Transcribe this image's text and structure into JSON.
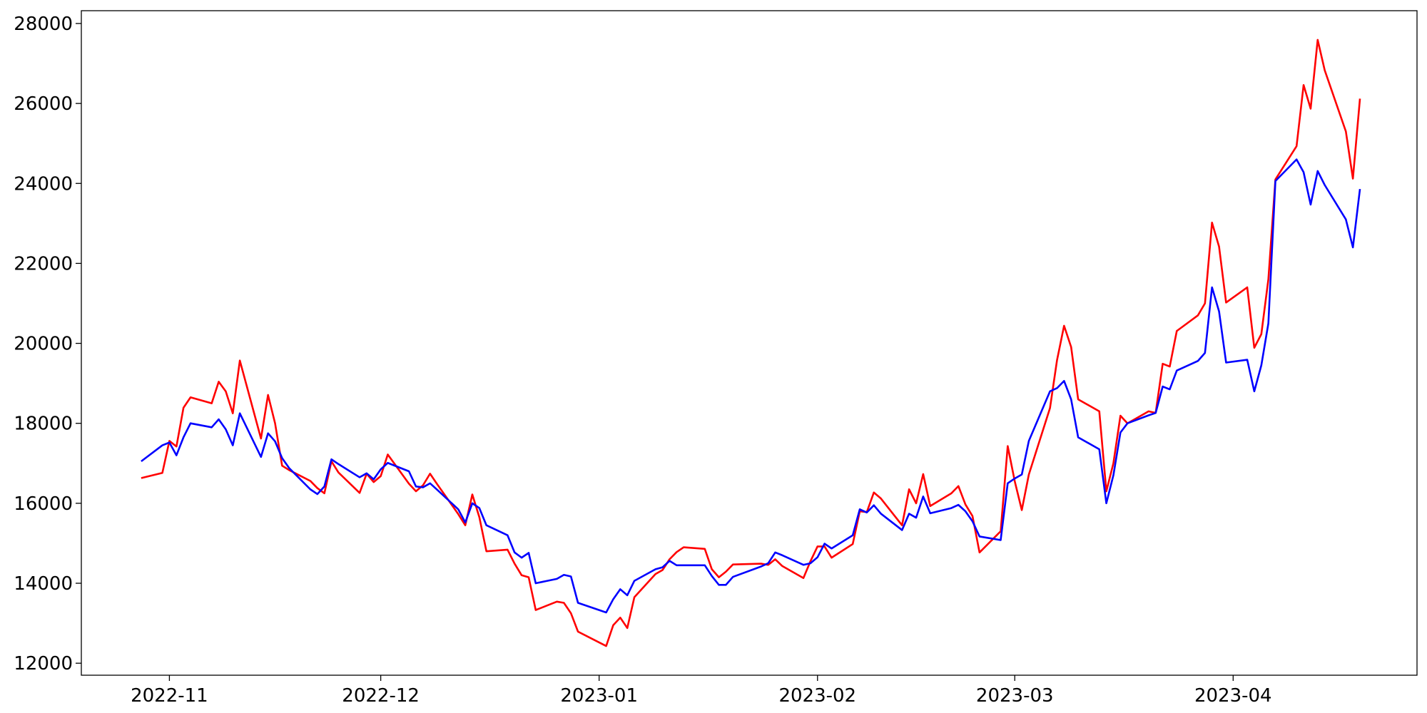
{
  "chart_data": {
    "type": "line",
    "x": [
      -4,
      -1,
      0,
      1,
      2,
      3,
      6,
      7,
      8,
      9,
      10,
      13,
      14,
      15,
      16,
      17,
      20,
      21,
      22,
      23,
      24,
      27,
      28,
      29,
      30,
      31,
      34,
      35,
      36,
      37,
      38,
      41,
      42,
      43,
      44,
      45,
      48,
      49,
      50,
      51,
      52,
      55,
      56,
      57,
      58,
      62,
      63,
      64,
      65,
      66,
      69,
      70,
      71,
      72,
      73,
      76,
      77,
      78,
      79,
      80,
      84,
      85,
      86,
      87,
      90,
      91,
      92,
      93,
      94,
      97,
      98,
      99,
      100,
      101,
      104,
      105,
      106,
      107,
      108,
      111,
      112,
      113,
      114,
      115,
      118,
      119,
      120,
      121,
      122,
      125,
      126,
      127,
      128,
      129,
      132,
      133,
      134,
      135,
      136,
      139,
      140,
      141,
      142,
      143,
      146,
      147,
      148,
      149,
      150,
      153,
      154,
      155,
      156,
      157,
      160,
      161,
      162,
      163,
      164,
      167,
      168,
      169
    ],
    "series": [
      {
        "color": "#ff0000",
        "values": [
          16630,
          16760,
          17560,
          17420,
          18390,
          18650,
          18500,
          19040,
          18800,
          18250,
          19570,
          17620,
          18710,
          18000,
          16940,
          16830,
          16560,
          16380,
          16250,
          17050,
          16770,
          16260,
          16740,
          16530,
          16680,
          17220,
          16490,
          16300,
          16450,
          16740,
          16480,
          15730,
          15450,
          16220,
          15650,
          14800,
          14840,
          14490,
          14200,
          14150,
          13330,
          13540,
          13510,
          13250,
          12790,
          12430,
          12950,
          13140,
          12880,
          13650,
          14230,
          14330,
          14600,
          14780,
          14900,
          14860,
          14350,
          14150,
          14290,
          14470,
          14490,
          14460,
          14600,
          14430,
          14130,
          14550,
          14920,
          14920,
          14640,
          14980,
          15800,
          15780,
          16270,
          16120,
          15450,
          16350,
          16000,
          16730,
          15930,
          16250,
          16430,
          15970,
          15680,
          14770,
          15300,
          17430,
          16550,
          15830,
          16720,
          18380,
          19580,
          20440,
          19910,
          18600,
          18300,
          16300,
          17000,
          18190,
          18000,
          18300,
          18260,
          19490,
          19420,
          20310,
          20700,
          21000,
          23020,
          22420,
          21020,
          21400,
          19890,
          20230,
          21600,
          24100,
          24930,
          26460,
          25870,
          27590,
          26830,
          25300,
          24120,
          26120
        ]
      },
      {
        "color": "#0000ff",
        "values": [
          17050,
          17450,
          17520,
          17200,
          17650,
          18000,
          17900,
          18100,
          17850,
          17450,
          18250,
          17160,
          17750,
          17550,
          17130,
          16880,
          16350,
          16230,
          16420,
          17100,
          16980,
          16650,
          16750,
          16600,
          16850,
          17010,
          16800,
          16420,
          16400,
          16500,
          16340,
          15850,
          15520,
          16000,
          15880,
          15450,
          15200,
          14770,
          14640,
          14760,
          14000,
          14110,
          14210,
          14170,
          13510,
          13270,
          13600,
          13850,
          13700,
          14060,
          14350,
          14400,
          14560,
          14450,
          14450,
          14450,
          14180,
          13960,
          13960,
          14160,
          14420,
          14500,
          14770,
          14700,
          14460,
          14500,
          14650,
          14990,
          14870,
          15200,
          15850,
          15770,
          15950,
          15740,
          15330,
          15740,
          15640,
          16170,
          15750,
          15880,
          15960,
          15800,
          15550,
          15170,
          15080,
          16500,
          16620,
          16720,
          17560,
          18800,
          18880,
          19060,
          18600,
          17650,
          17350,
          16000,
          16700,
          17770,
          18000,
          18200,
          18260,
          18920,
          18850,
          19320,
          19560,
          19760,
          21400,
          20800,
          19520,
          19590,
          18800,
          19450,
          20500,
          24060,
          24600,
          24280,
          23470,
          24310,
          23960,
          23100,
          22400,
          23860
        ]
      }
    ],
    "xlim": [
      -12.5,
      177.1
    ],
    "xticks": [
      {
        "value": 0,
        "label": "2022-11"
      },
      {
        "value": 30,
        "label": "2022-12"
      },
      {
        "value": 61,
        "label": "2023-01"
      },
      {
        "value": 92,
        "label": "2023-02"
      },
      {
        "value": 120,
        "label": "2023-03"
      },
      {
        "value": 151,
        "label": "2023-04"
      }
    ],
    "ylim": [
      11700,
      28320
    ],
    "yticks": [
      12000,
      14000,
      16000,
      18000,
      20000,
      22000,
      24000,
      26000,
      28000
    ]
  }
}
